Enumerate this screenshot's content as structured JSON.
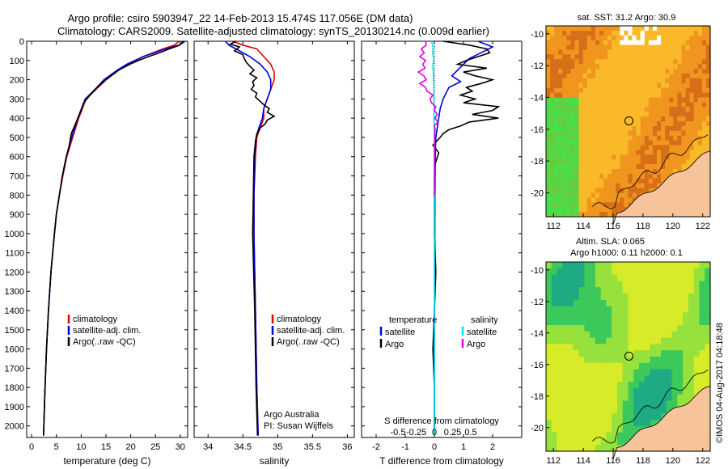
{
  "title": {
    "line1": "Argo profile: csiro 5903947_22 14-Feb-2013 15.474S 117.056E (DM data)",
    "line2": "Climatology: CARS2009. Satellite-adjusted climatology: synTS_20130214.nc (0.009d earlier)"
  },
  "colors": {
    "clim": "#e00000",
    "sat": "#0000e0",
    "argo": "#000000",
    "sat_salt": "#00e6e6",
    "argo_salt": "#e600e6"
  },
  "depth_axis": {
    "ticks": [
      0,
      100,
      200,
      300,
      400,
      500,
      600,
      700,
      800,
      900,
      1000,
      1100,
      1200,
      1300,
      1400,
      1500,
      1600,
      1700,
      1800,
      1900,
      2000
    ]
  },
  "chart_data": [
    {
      "type": "line",
      "name": "temperature-profile",
      "xlabel": "temperature (deg C)",
      "ylabel": "",
      "xlim": [
        -1,
        31.5
      ],
      "ylim": [
        2060,
        0
      ],
      "xticks": [
        0,
        5,
        10,
        15,
        20,
        25,
        30
      ],
      "legend": [
        "climatology",
        "satellite-adj. clim.",
        "Argo(..raw -QC)"
      ],
      "series": [
        {
          "name": "climatology",
          "color": "clim",
          "depth": [
            0,
            20,
            40,
            60,
            80,
            100,
            120,
            150,
            200,
            250,
            300,
            400,
            500,
            600,
            700,
            800,
            900,
            1000,
            1200,
            1400,
            1600,
            1800,
            2050
          ],
          "values": [
            29.8,
            28.8,
            26.5,
            24.5,
            22.5,
            21.0,
            19.5,
            17.5,
            15.0,
            13.0,
            11.0,
            9.5,
            8.3,
            7.1,
            6.3,
            5.6,
            5.0,
            4.6,
            3.9,
            3.4,
            3.0,
            2.7,
            2.4
          ]
        },
        {
          "name": "satellite-adj. clim.",
          "color": "sat",
          "depth": [
            0,
            20,
            40,
            60,
            80,
            100,
            120,
            150,
            200,
            250,
            300,
            400,
            500,
            600,
            700,
            800,
            900,
            1000,
            1200,
            1400,
            1600,
            1800,
            2050
          ],
          "values": [
            31.0,
            29.8,
            27.0,
            24.8,
            22.5,
            20.8,
            19.2,
            17.3,
            14.6,
            12.8,
            10.8,
            9.3,
            8.1,
            7.0,
            6.2,
            5.6,
            5.0,
            4.6,
            3.9,
            3.4,
            3.0,
            2.7,
            2.4
          ]
        },
        {
          "name": "Argo(..raw -QC)",
          "color": "argo",
          "depth": [
            0,
            20,
            40,
            60,
            80,
            100,
            120,
            150,
            200,
            250,
            280,
            320,
            360,
            420,
            480,
            540,
            600,
            700,
            800,
            900,
            1000,
            1200,
            1400,
            1600,
            1800,
            2050
          ],
          "values": [
            30.6,
            29.9,
            27.8,
            25.8,
            23.6,
            21.6,
            19.8,
            17.6,
            15.0,
            12.8,
            11.8,
            10.5,
            10.0,
            9.0,
            8.0,
            7.6,
            7.0,
            6.2,
            5.6,
            5.0,
            4.6,
            3.9,
            3.4,
            3.0,
            2.7,
            2.4
          ]
        }
      ]
    },
    {
      "type": "line",
      "name": "salinity-profile",
      "xlabel": "salinity",
      "xlim": [
        33.8,
        36.1
      ],
      "ylim": [
        2060,
        0
      ],
      "xticks": [
        34,
        34.5,
        35,
        35.5,
        36
      ],
      "xticklabels": [
        "34",
        "34.5",
        "35",
        "35.5",
        "36"
      ],
      "legend": [
        "climatology",
        "satellite-adj. clim.",
        "Argo(..raw -QC)"
      ],
      "annotation": [
        "Argo Australia",
        "PI: Susan Wijffels"
      ],
      "series": [
        {
          "name": "climatology",
          "color": "clim",
          "depth": [
            0,
            20,
            40,
            80,
            120,
            160,
            200,
            250,
            300,
            350,
            400,
            450,
            500,
            600,
            800,
            1000,
            1400,
            1800,
            2050
          ],
          "values": [
            34.35,
            34.5,
            34.7,
            34.8,
            34.9,
            34.95,
            34.95,
            34.9,
            34.85,
            34.8,
            34.8,
            34.75,
            34.7,
            34.68,
            34.66,
            34.66,
            34.68,
            34.7,
            34.72
          ]
        },
        {
          "name": "satellite-adj. clim.",
          "color": "sat",
          "depth": [
            0,
            20,
            40,
            80,
            120,
            160,
            200,
            250,
            300,
            350,
            400,
            450,
            500,
            600,
            800,
            1000,
            1400,
            1800,
            2050
          ],
          "values": [
            34.25,
            34.3,
            34.4,
            34.6,
            34.75,
            34.85,
            34.9,
            34.9,
            34.85,
            34.8,
            34.78,
            34.73,
            34.69,
            34.67,
            34.66,
            34.66,
            34.68,
            34.7,
            34.72
          ]
        },
        {
          "name": "Argo(..raw -QC)",
          "color": "argo",
          "depth": [
            0,
            15,
            30,
            50,
            70,
            90,
            110,
            130,
            150,
            170,
            190,
            210,
            230,
            250,
            270,
            290,
            310,
            330,
            350,
            370,
            390,
            410,
            430,
            450,
            480,
            520,
            600,
            800,
            1000,
            1400,
            1800,
            2050
          ],
          "values": [
            34.4,
            34.32,
            34.45,
            34.38,
            34.5,
            34.52,
            34.55,
            34.6,
            34.66,
            34.6,
            34.7,
            34.64,
            34.66,
            34.62,
            34.7,
            34.68,
            34.74,
            34.8,
            34.88,
            34.85,
            34.95,
            34.85,
            34.82,
            34.75,
            34.7,
            34.68,
            34.66,
            34.65,
            34.64,
            34.67,
            34.69,
            34.71
          ]
        }
      ]
    },
    {
      "type": "line",
      "name": "difference-profile",
      "xlabel": "T difference from climatology",
      "xlabel_top": "S difference from climatology",
      "xlim": [
        -2.5,
        3.0
      ],
      "ylim": [
        2060,
        0
      ],
      "xticks": [
        -2,
        -1,
        0,
        1,
        2
      ],
      "top_ticks": [
        -0.5,
        -0.25,
        0,
        0.25,
        0.5
      ],
      "top_ticklabels": [
        "-0.5",
        "-0.25",
        "0",
        "0.25",
        "0.5"
      ],
      "legend_temperature": {
        "title": "temperature",
        "items": [
          "satellite",
          "Argo"
        ]
      },
      "legend_salinity": {
        "title": "salinity",
        "items": [
          "satellite",
          "Argo"
        ]
      },
      "series": [
        {
          "name": "T satellite",
          "color": "sat",
          "depth": [
            0,
            30,
            60,
            90,
            120,
            150,
            180,
            210,
            240,
            270,
            300,
            350,
            400,
            450,
            500,
            600,
            800,
            1200,
            1600,
            2050
          ],
          "values": [
            1.5,
            2.0,
            1.6,
            1.2,
            1.0,
            0.8,
            0.6,
            0.9,
            0.5,
            0.4,
            0.3,
            0.2,
            0.15,
            0.1,
            0.05,
            0.03,
            0.02,
            0.01,
            0.0,
            0.0
          ]
        },
        {
          "name": "T Argo",
          "color": "argo",
          "depth": [
            0,
            20,
            40,
            60,
            80,
            100,
            120,
            140,
            160,
            180,
            200,
            220,
            240,
            260,
            280,
            300,
            320,
            340,
            360,
            380,
            400,
            420,
            440,
            460,
            480,
            500,
            540,
            580,
            650,
            800,
            1000,
            1200,
            1400,
            1600,
            1800,
            2050
          ],
          "values": [
            0.3,
            1.2,
            1.8,
            1.9,
            1.5,
            1.1,
            0.8,
            1.8,
            1.0,
            1.4,
            2.0,
            1.6,
            1.1,
            1.3,
            0.9,
            1.4,
            1.0,
            2.2,
            2.0,
            1.3,
            2.2,
            1.2,
            0.9,
            0.5,
            0.3,
            0.2,
            -0.05,
            0.15,
            0.0,
            0.0,
            0.0,
            0.05,
            0.0,
            -0.05,
            0.0,
            0.0
          ]
        },
        {
          "name": "S satellite",
          "color": "sat_salt",
          "depth": [
            0,
            30,
            60,
            90,
            120,
            160,
            200,
            250,
            300,
            350,
            400,
            500,
            700,
            1000,
            1500,
            2050
          ],
          "values": [
            -0.1,
            -0.04,
            -0.06,
            -0.02,
            -0.05,
            -0.04,
            -0.03,
            -0.02,
            -0.02,
            -0.01,
            -0.01,
            0.0,
            0.0,
            0.0,
            0.0,
            0.0
          ]
        },
        {
          "name": "S Argo",
          "color": "argo_salt",
          "depth": [
            0,
            20,
            40,
            60,
            80,
            100,
            120,
            140,
            160,
            180,
            200,
            220,
            240,
            260,
            280,
            300,
            320,
            340,
            360,
            380,
            400,
            420,
            440,
            460,
            480,
            500,
            600,
            800
          ],
          "values": [
            -0.3,
            -0.28,
            -0.45,
            -0.35,
            -0.5,
            -0.3,
            -0.4,
            -0.32,
            -0.55,
            -0.36,
            -0.28,
            -0.5,
            -0.3,
            -0.25,
            -0.05,
            -0.15,
            -0.1,
            0.05,
            0.0,
            0.1,
            0.02,
            0.12,
            0.0,
            0.03,
            0.01,
            0.01,
            0.0,
            0.0
          ]
        }
      ]
    },
    {
      "type": "heatmap",
      "name": "sst-map",
      "title": "sat. SST: 31.2  Argo: 30.9",
      "xticks": [
        112,
        114,
        116,
        118,
        120,
        122
      ],
      "yticks": [
        -10,
        -12,
        -14,
        -16,
        -18,
        -20
      ],
      "xlim": [
        111.5,
        122.5
      ],
      "ylim": [
        -21.5,
        -9.5
      ],
      "argo_position": {
        "lon": 117.056,
        "lat": -15.474
      }
    },
    {
      "type": "heatmap",
      "name": "sla-map",
      "title": "Altim. SLA: 0.065",
      "subtitle": "Argo h1000: 0.11  h2000: 0.1",
      "xticks": [
        112,
        114,
        116,
        118,
        120,
        122
      ],
      "yticks": [
        -10,
        -12,
        -14,
        -16,
        -18,
        -20
      ],
      "xlim": [
        111.5,
        122.5
      ],
      "ylim": [
        -21.5,
        -9.5
      ],
      "argo_position": {
        "lon": 117.056,
        "lat": -15.474
      }
    }
  ],
  "credit": "©IMOS 04-Aug-2017 04:18:48"
}
